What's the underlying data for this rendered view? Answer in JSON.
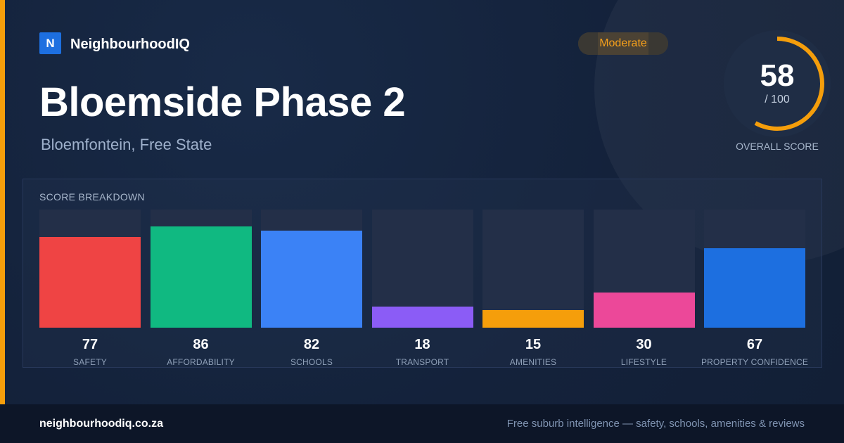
{
  "brand": {
    "logo_letter": "N",
    "name": "NeighbourhoodIQ"
  },
  "badge": {
    "label": "Moderate",
    "color": "#f6a01b"
  },
  "suburb": {
    "title": "Bloemside Phase 2",
    "location": "Bloemfontein, Free State"
  },
  "overall_score": {
    "value": "58",
    "max_label": "/ 100",
    "label": "OVERALL SCORE",
    "fraction": 0.58,
    "ring_color": "#f59e0b"
  },
  "breakdown": {
    "title": "SCORE BREAKDOWN"
  },
  "chart_data": {
    "type": "bar",
    "title": "SCORE BREAKDOWN",
    "ylim": [
      0,
      100
    ],
    "categories": [
      "SAFETY",
      "AFFORDABILITY",
      "SCHOOLS",
      "TRANSPORT",
      "AMENITIES",
      "LIFESTYLE",
      "PROPERTY CONFIDENCE"
    ],
    "values": [
      77,
      86,
      82,
      18,
      15,
      30,
      67
    ],
    "colors": [
      "#ef4444",
      "#10b981",
      "#3b82f6",
      "#8b5cf6",
      "#f59e0b",
      "#ec4899",
      "#1d6fe0"
    ]
  },
  "footer": {
    "site": "neighbourhoodiq.co.za",
    "tagline": "Free suburb intelligence — safety, schools, amenities & reviews"
  }
}
